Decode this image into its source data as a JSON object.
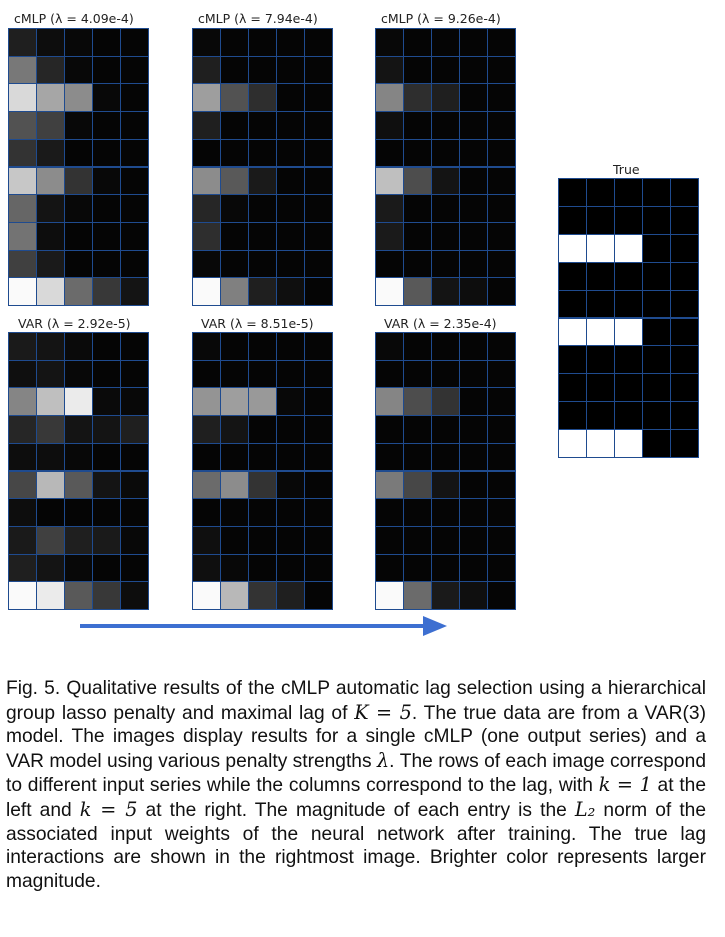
{
  "figure": {
    "panels": [
      {
        "id": "cmlp-1",
        "title": "cMLP (λ = 4.09e-4)",
        "cells": [
          [
            0.12,
            0.05,
            0.03,
            0.02,
            0.02
          ],
          [
            0.47,
            0.15,
            0.03,
            0.02,
            0.02
          ],
          [
            0.85,
            0.65,
            0.55,
            0.03,
            0.02
          ],
          [
            0.32,
            0.25,
            0.03,
            0.02,
            0.02
          ],
          [
            0.2,
            0.1,
            0.02,
            0.02,
            0.02
          ],
          [
            0.78,
            0.55,
            0.2,
            0.03,
            0.02
          ],
          [
            0.4,
            0.08,
            0.03,
            0.02,
            0.02
          ],
          [
            0.45,
            0.05,
            0.02,
            0.02,
            0.02
          ],
          [
            0.25,
            0.1,
            0.02,
            0.02,
            0.02
          ],
          [
            0.98,
            0.85,
            0.42,
            0.22,
            0.08
          ]
        ]
      },
      {
        "id": "cmlp-2",
        "title": "cMLP (λ = 7.94e-4)",
        "cells": [
          [
            0.03,
            0.02,
            0.02,
            0.02,
            0.02
          ],
          [
            0.12,
            0.02,
            0.02,
            0.02,
            0.02
          ],
          [
            0.62,
            0.32,
            0.18,
            0.02,
            0.02
          ],
          [
            0.12,
            0.02,
            0.02,
            0.02,
            0.02
          ],
          [
            0.02,
            0.02,
            0.02,
            0.02,
            0.02
          ],
          [
            0.55,
            0.35,
            0.1,
            0.02,
            0.02
          ],
          [
            0.15,
            0.03,
            0.02,
            0.02,
            0.02
          ],
          [
            0.18,
            0.02,
            0.02,
            0.02,
            0.02
          ],
          [
            0.03,
            0.02,
            0.02,
            0.02,
            0.02
          ],
          [
            0.98,
            0.5,
            0.12,
            0.06,
            0.02
          ]
        ]
      },
      {
        "id": "cmlp-3",
        "title": "cMLP (λ = 9.26e-4)",
        "cells": [
          [
            0.03,
            0.02,
            0.02,
            0.02,
            0.02
          ],
          [
            0.08,
            0.02,
            0.02,
            0.02,
            0.02
          ],
          [
            0.52,
            0.18,
            0.12,
            0.02,
            0.02
          ],
          [
            0.06,
            0.02,
            0.02,
            0.02,
            0.02
          ],
          [
            0.02,
            0.02,
            0.02,
            0.02,
            0.02
          ],
          [
            0.75,
            0.3,
            0.08,
            0.02,
            0.02
          ],
          [
            0.1,
            0.02,
            0.02,
            0.02,
            0.02
          ],
          [
            0.1,
            0.02,
            0.02,
            0.02,
            0.02
          ],
          [
            0.02,
            0.02,
            0.02,
            0.02,
            0.02
          ],
          [
            0.98,
            0.35,
            0.08,
            0.05,
            0.02
          ]
        ]
      },
      {
        "id": "var-1",
        "title": "VAR (λ = 2.92e-5)",
        "cells": [
          [
            0.1,
            0.08,
            0.04,
            0.02,
            0.02
          ],
          [
            0.06,
            0.08,
            0.03,
            0.02,
            0.02
          ],
          [
            0.52,
            0.75,
            0.92,
            0.04,
            0.03
          ],
          [
            0.15,
            0.22,
            0.08,
            0.08,
            0.12
          ],
          [
            0.05,
            0.05,
            0.03,
            0.02,
            0.02
          ],
          [
            0.28,
            0.72,
            0.35,
            0.08,
            0.04
          ],
          [
            0.05,
            0.02,
            0.02,
            0.02,
            0.02
          ],
          [
            0.1,
            0.25,
            0.12,
            0.1,
            0.03
          ],
          [
            0.12,
            0.08,
            0.03,
            0.02,
            0.02
          ],
          [
            0.98,
            0.92,
            0.35,
            0.22,
            0.05
          ]
        ]
      },
      {
        "id": "var-2",
        "title": "VAR (λ = 8.51e-5)",
        "cells": [
          [
            0.03,
            0.02,
            0.02,
            0.02,
            0.02
          ],
          [
            0.02,
            0.02,
            0.02,
            0.02,
            0.02
          ],
          [
            0.58,
            0.62,
            0.6,
            0.03,
            0.02
          ],
          [
            0.12,
            0.08,
            0.02,
            0.02,
            0.02
          ],
          [
            0.02,
            0.02,
            0.02,
            0.02,
            0.02
          ],
          [
            0.42,
            0.55,
            0.2,
            0.03,
            0.02
          ],
          [
            0.02,
            0.02,
            0.02,
            0.02,
            0.02
          ],
          [
            0.06,
            0.02,
            0.02,
            0.02,
            0.02
          ],
          [
            0.06,
            0.03,
            0.02,
            0.02,
            0.02
          ],
          [
            0.98,
            0.72,
            0.2,
            0.12,
            0.02
          ]
        ]
      },
      {
        "id": "var-3",
        "title": "VAR (λ = 2.35e-4)",
        "cells": [
          [
            0.03,
            0.02,
            0.02,
            0.02,
            0.02
          ],
          [
            0.02,
            0.02,
            0.02,
            0.02,
            0.02
          ],
          [
            0.52,
            0.3,
            0.2,
            0.02,
            0.02
          ],
          [
            0.02,
            0.02,
            0.02,
            0.02,
            0.02
          ],
          [
            0.02,
            0.02,
            0.02,
            0.02,
            0.02
          ],
          [
            0.48,
            0.28,
            0.08,
            0.02,
            0.02
          ],
          [
            0.02,
            0.02,
            0.02,
            0.02,
            0.02
          ],
          [
            0.02,
            0.02,
            0.02,
            0.02,
            0.02
          ],
          [
            0.02,
            0.02,
            0.02,
            0.02,
            0.02
          ],
          [
            0.98,
            0.42,
            0.1,
            0.06,
            0.02
          ]
        ]
      },
      {
        "id": "true",
        "title": "True",
        "cells": [
          [
            0,
            0,
            0,
            0,
            0
          ],
          [
            0,
            0,
            0,
            0,
            0
          ],
          [
            1,
            1,
            1,
            0,
            0
          ],
          [
            0,
            0,
            0,
            0,
            0
          ],
          [
            0,
            0,
            0,
            0,
            0
          ],
          [
            1,
            1,
            1,
            0,
            0
          ],
          [
            0,
            0,
            0,
            0,
            0
          ],
          [
            0,
            0,
            0,
            0,
            0
          ],
          [
            0,
            0,
            0,
            0,
            0
          ],
          [
            1,
            1,
            1,
            0,
            0
          ]
        ]
      }
    ],
    "arrow_color": "#3d6fd1",
    "cell_colormap": "grayscale"
  },
  "caption": {
    "label": "Fig. 5.",
    "part1": " Qualitative results of the cMLP automatic lag selection using a hierarchical group lasso penalty and maximal lag of ",
    "math1": "K = 5",
    "part2": ". The true data are from a VAR(3) model. The images display results for a single cMLP (one output series) and a VAR model using various penalty strengths ",
    "math2": "λ",
    "part3": ". The rows of each image correspond to different input series while the columns correspond to the lag, with ",
    "math3": "k = 1",
    "part4": " at the left and ",
    "math4": "k = 5",
    "part5": " at the right. The magnitude of each entry is the ",
    "math5": "L₂",
    "part6": " norm of the associated input weights of the neural network after training. The true lag interactions are shown in the rightmost image. Brighter color represents larger magnitude."
  }
}
